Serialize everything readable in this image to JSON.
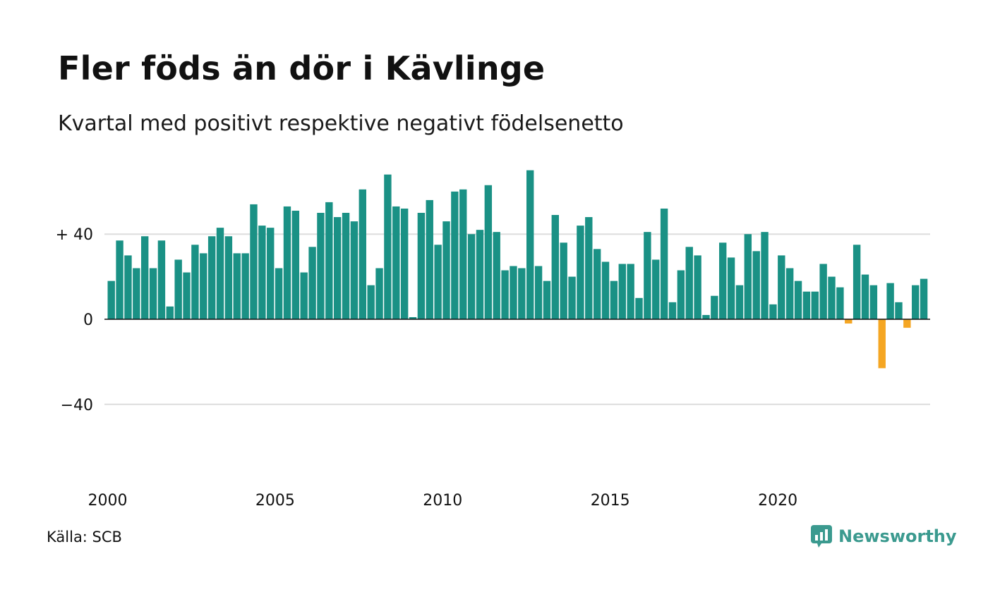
{
  "title": "Fler föds än dör i Kävlinge",
  "subtitle": "Kvartal med positivt respektive negativt födelsenetto",
  "source": "Källa: SCB",
  "brand": {
    "name": "Newsworthy",
    "icon": "newsworthy-logo-icon"
  },
  "colors": {
    "positive": "#1a9185",
    "negative": "#f5a623",
    "grid": "#dddddd",
    "axis": "#111111"
  },
  "chart_data": {
    "type": "bar",
    "x_start": "2000-Q1",
    "x_step": "quarter",
    "ylim": [
      -60,
      75
    ],
    "yticks": [
      {
        "value": 40,
        "label": "+ 40"
      },
      {
        "value": 0,
        "label": "0"
      },
      {
        "value": -40,
        "label": "−40"
      }
    ],
    "xticks": [
      {
        "value": "2000",
        "label": "2000"
      },
      {
        "value": "2005",
        "label": "2005"
      },
      {
        "value": "2010",
        "label": "2010"
      },
      {
        "value": "2015",
        "label": "2015"
      },
      {
        "value": "2020",
        "label": "2020"
      }
    ],
    "grid": true,
    "values": [
      18,
      37,
      30,
      24,
      39,
      24,
      37,
      6,
      28,
      22,
      35,
      31,
      39,
      43,
      39,
      31,
      31,
      54,
      44,
      43,
      24,
      53,
      51,
      22,
      34,
      50,
      55,
      48,
      50,
      46,
      61,
      16,
      24,
      68,
      53,
      52,
      1,
      50,
      56,
      35,
      46,
      60,
      61,
      40,
      42,
      63,
      41,
      23,
      25,
      24,
      70,
      25,
      18,
      49,
      36,
      20,
      44,
      48,
      33,
      27,
      18,
      26,
      26,
      10,
      41,
      28,
      52,
      8,
      23,
      34,
      30,
      2,
      11,
      36,
      29,
      16,
      40,
      32,
      41,
      7,
      30,
      24,
      18,
      13,
      13,
      26,
      20,
      15,
      -2,
      35,
      21,
      16,
      -23,
      17,
      8,
      -4,
      16,
      19
    ]
  }
}
